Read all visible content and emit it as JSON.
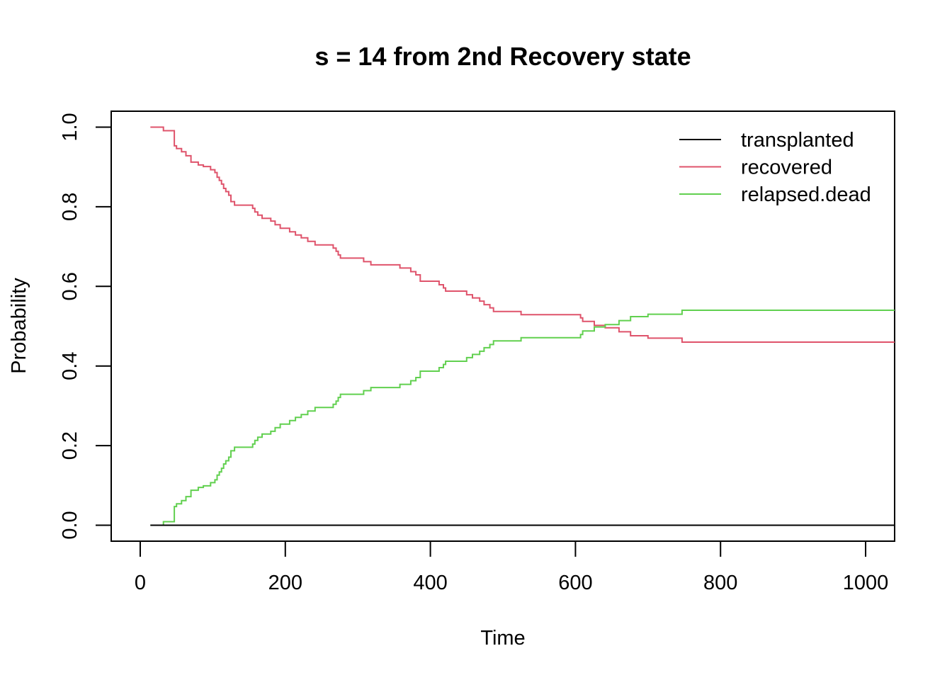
{
  "chart_data": {
    "type": "line",
    "step": true,
    "title": "s = 14 from 2nd Recovery state",
    "xlabel": "Time",
    "ylabel": "Probability",
    "xlim": [
      -40,
      1040
    ],
    "ylim": [
      -0.04,
      1.04
    ],
    "xticks": [
      0,
      200,
      400,
      600,
      800,
      1000
    ],
    "xtick_labels": [
      "0",
      "200",
      "400",
      "600",
      "800",
      "1000"
    ],
    "yticks": [
      0,
      0.2,
      0.4,
      0.6,
      0.8,
      1.0
    ],
    "ytick_labels": [
      "0.0",
      "0.2",
      "0.4",
      "0.6",
      "0.8",
      "1.0"
    ],
    "grid": false,
    "legend": "top-right",
    "series": [
      {
        "name": "transplanted",
        "color": "#000000",
        "x": [
          14,
          1040
        ],
        "y": [
          0,
          0
        ]
      },
      {
        "name": "recovered",
        "color": "#DF536B",
        "x": [
          14,
          32,
          47,
          50,
          57,
          63,
          70,
          80,
          87,
          97,
          103,
          106,
          109,
          112,
          115,
          118,
          122,
          125,
          130,
          155,
          158,
          162,
          168,
          172,
          180,
          186,
          193,
          206,
          214,
          222,
          231,
          241,
          248,
          255,
          266,
          270,
          273,
          276,
          281,
          308,
          318,
          331,
          358,
          373,
          380,
          386,
          393,
          412,
          418,
          421,
          423,
          450,
          458,
          468,
          474,
          482,
          487,
          525,
          607,
          610,
          626,
          641,
          660,
          676,
          700,
          747,
          1040
        ],
        "y": [
          1.0,
          0.991,
          0.953,
          0.946,
          0.938,
          0.928,
          0.912,
          0.905,
          0.901,
          0.893,
          0.886,
          0.874,
          0.866,
          0.857,
          0.846,
          0.838,
          0.829,
          0.813,
          0.804,
          0.796,
          0.787,
          0.779,
          0.771,
          0.771,
          0.764,
          0.755,
          0.746,
          0.737,
          0.729,
          0.722,
          0.713,
          0.704,
          0.704,
          0.704,
          0.696,
          0.688,
          0.679,
          0.671,
          0.671,
          0.662,
          0.654,
          0.654,
          0.646,
          0.637,
          0.629,
          0.613,
          0.613,
          0.604,
          0.596,
          0.588,
          0.588,
          0.579,
          0.571,
          0.563,
          0.554,
          0.546,
          0.537,
          0.529,
          0.521,
          0.512,
          0.502,
          0.496,
          0.486,
          0.476,
          0.47,
          0.46,
          0.46
        ]
      },
      {
        "name": "relapsed.dead",
        "color": "#61D04F",
        "x": [
          14,
          32,
          47,
          50,
          57,
          63,
          70,
          80,
          87,
          97,
          103,
          106,
          109,
          112,
          115,
          118,
          122,
          125,
          130,
          155,
          158,
          162,
          168,
          172,
          180,
          186,
          193,
          206,
          214,
          222,
          231,
          241,
          248,
          255,
          266,
          270,
          273,
          276,
          281,
          308,
          318,
          331,
          358,
          373,
          380,
          386,
          393,
          412,
          418,
          421,
          423,
          450,
          458,
          468,
          474,
          482,
          487,
          525,
          607,
          610,
          626,
          641,
          660,
          676,
          700,
          747,
          1040
        ],
        "y": [
          0.0,
          0.009,
          0.047,
          0.054,
          0.062,
          0.072,
          0.088,
          0.095,
          0.099,
          0.107,
          0.114,
          0.126,
          0.134,
          0.143,
          0.154,
          0.162,
          0.171,
          0.187,
          0.196,
          0.204,
          0.213,
          0.221,
          0.229,
          0.229,
          0.236,
          0.245,
          0.254,
          0.263,
          0.271,
          0.278,
          0.287,
          0.296,
          0.296,
          0.296,
          0.304,
          0.312,
          0.321,
          0.329,
          0.329,
          0.338,
          0.346,
          0.346,
          0.354,
          0.363,
          0.371,
          0.387,
          0.387,
          0.396,
          0.404,
          0.412,
          0.412,
          0.421,
          0.429,
          0.437,
          0.446,
          0.454,
          0.463,
          0.471,
          0.479,
          0.488,
          0.498,
          0.504,
          0.514,
          0.524,
          0.53,
          0.54,
          0.54
        ]
      }
    ]
  }
}
